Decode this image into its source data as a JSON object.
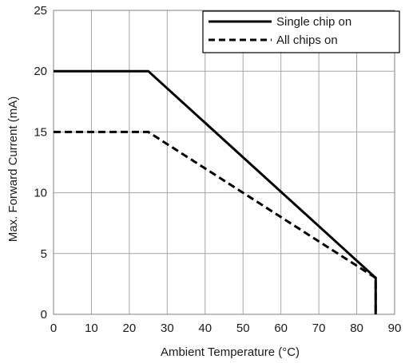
{
  "chart_data": {
    "type": "line",
    "title": "",
    "xlabel": "Ambient Temperature (°C)",
    "ylabel": "Max. Forward Current (mA)",
    "xlim": [
      0,
      90
    ],
    "ylim": [
      0,
      25
    ],
    "xticks": [
      0,
      10,
      20,
      30,
      40,
      50,
      60,
      70,
      80,
      90
    ],
    "yticks": [
      0,
      5,
      10,
      15,
      20,
      25
    ],
    "grid": true,
    "legend_position": "top-right",
    "series": [
      {
        "name": "Single chip on",
        "style": "solid",
        "color": "#000000",
        "x": [
          0,
          25,
          85,
          85
        ],
        "y": [
          20,
          20,
          3,
          0
        ]
      },
      {
        "name": "All chips on",
        "style": "dashed",
        "color": "#000000",
        "x": [
          0,
          25,
          85,
          85
        ],
        "y": [
          15,
          15,
          3,
          0
        ]
      }
    ]
  }
}
